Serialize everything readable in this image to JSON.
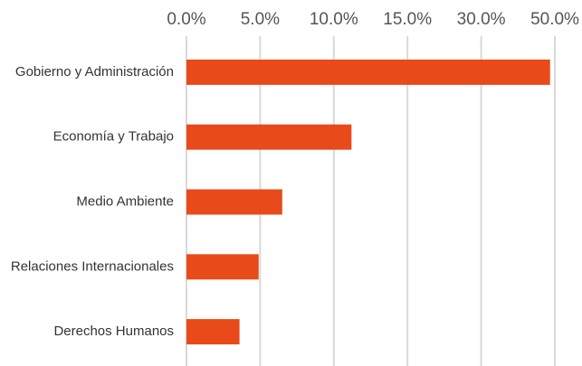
{
  "chart_data": {
    "type": "barh",
    "categories": [
      "Gobierno y Administración",
      "Economía y Trabajo",
      "Medio Ambiente",
      "Relaciones Internacionales",
      "Derechos Humanos"
    ],
    "values": [
      48.7,
      11.2,
      6.5,
      4.9,
      3.6
    ],
    "color": "#e84a1a",
    "xlim": [
      0,
      50
    ],
    "x_scale": "piecewise-linear",
    "xticks": [
      {
        "value": 0,
        "label": "0.0%"
      },
      {
        "value": 5,
        "label": "5.0%"
      },
      {
        "value": 10,
        "label": "10.0%"
      },
      {
        "value": 15,
        "label": "15.0%"
      },
      {
        "value": 30,
        "label": "30.0%"
      },
      {
        "value": 50,
        "label": "50.0%"
      }
    ],
    "grid": true
  }
}
